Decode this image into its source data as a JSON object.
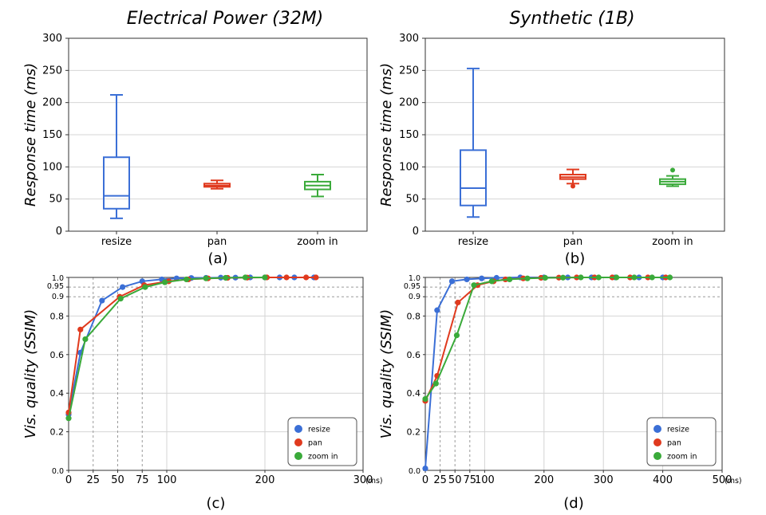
{
  "colors": {
    "resize": "#3b6fd6",
    "pan": "#e03a1e",
    "zoom_in": "#3aaa3a"
  },
  "chart_data": [
    {
      "id": "a",
      "type": "box",
      "title": "Electrical Power (32M)",
      "ylabel": "Response time (ms)",
      "caption": "(a)",
      "ylim": [
        0,
        300
      ],
      "yticks": [
        0,
        50,
        100,
        150,
        200,
        250,
        300
      ],
      "grid": "horizontal",
      "categories": [
        "resize",
        "pan",
        "zoom in"
      ],
      "boxes": [
        {
          "name": "resize",
          "whislo": 20,
          "q1": 35,
          "med": 55,
          "q3": 115,
          "whishi": 212,
          "fliers": []
        },
        {
          "name": "pan",
          "whislo": 66,
          "q1": 69,
          "med": 71,
          "q3": 74,
          "whishi": 79,
          "fliers": []
        },
        {
          "name": "zoom in",
          "whislo": 54,
          "q1": 65,
          "med": 71,
          "q3": 77,
          "whishi": 88,
          "fliers": []
        }
      ]
    },
    {
      "id": "b",
      "type": "box",
      "title": "Synthetic (1B)",
      "ylabel": "Response time (ms)",
      "caption": "(b)",
      "ylim": [
        0,
        300
      ],
      "yticks": [
        0,
        50,
        100,
        150,
        200,
        250,
        300
      ],
      "grid": "horizontal",
      "categories": [
        "resize",
        "pan",
        "zoom in"
      ],
      "boxes": [
        {
          "name": "resize",
          "whislo": 22,
          "q1": 40,
          "med": 67,
          "q3": 126,
          "whishi": 253,
          "fliers": []
        },
        {
          "name": "pan",
          "whislo": 74,
          "q1": 81,
          "med": 84,
          "q3": 88,
          "whishi": 96,
          "fliers": [
            70
          ]
        },
        {
          "name": "zoom in",
          "whislo": 70,
          "q1": 73,
          "med": 77,
          "q3": 81,
          "whishi": 86,
          "fliers": [
            95
          ]
        }
      ]
    },
    {
      "id": "c",
      "type": "line",
      "title": "",
      "ylabel": "Vis. quality (SSIM)",
      "xunit": "(ms)",
      "caption": "(c)",
      "xlim": [
        0,
        300
      ],
      "ylim": [
        0,
        1.0
      ],
      "xticks": [
        0,
        25,
        50,
        75,
        100,
        200,
        300
      ],
      "yticks": [
        0.0,
        0.2,
        0.4,
        0.6,
        0.8,
        0.9,
        0.95,
        1.0
      ],
      "solid_vlines": [
        100,
        200,
        300
      ],
      "dashed_vlines": [
        25,
        50,
        75
      ],
      "dashed_hlines": [
        0.9,
        0.95
      ],
      "legend": "bottom-right",
      "series": [
        {
          "name": "resize",
          "x": [
            0,
            12,
            34,
            55,
            75,
            95,
            110,
            125,
            140,
            155,
            170,
            185,
            200,
            215,
            230,
            250
          ],
          "y": [
            0.29,
            0.61,
            0.88,
            0.95,
            0.98,
            0.99,
            0.995,
            0.997,
            0.998,
            0.999,
            0.999,
            1.0,
            1.0,
            1.0,
            1.0,
            1.0
          ]
        },
        {
          "name": "pan",
          "x": [
            0,
            12,
            52,
            77,
            102,
            122,
            142,
            162,
            182,
            202,
            222,
            242,
            252
          ],
          "y": [
            0.3,
            0.73,
            0.9,
            0.96,
            0.98,
            0.99,
            0.995,
            0.998,
            0.999,
            1.0,
            1.0,
            1.0,
            1.0
          ]
        },
        {
          "name": "zoom in",
          "x": [
            0,
            17,
            53,
            78,
            98,
            120,
            140,
            160,
            180,
            200
          ],
          "y": [
            0.27,
            0.68,
            0.89,
            0.95,
            0.975,
            0.99,
            0.995,
            0.998,
            1.0,
            1.0
          ]
        }
      ]
    },
    {
      "id": "d",
      "type": "line",
      "title": "",
      "ylabel": "Vis. quality (SSIM)",
      "xunit": "(ms)",
      "caption": "(d)",
      "xlim": [
        0,
        500
      ],
      "ylim": [
        0,
        1.0
      ],
      "xticks": [
        0,
        25,
        50,
        75,
        100,
        200,
        300,
        400,
        500
      ],
      "yticks": [
        0.0,
        0.2,
        0.4,
        0.6,
        0.8,
        0.9,
        0.95,
        1.0
      ],
      "solid_vlines": [
        100,
        200,
        300,
        400,
        500
      ],
      "dashed_vlines": [
        25,
        50,
        75
      ],
      "dashed_hlines": [
        0.9,
        0.95
      ],
      "legend": "bottom-right",
      "series": [
        {
          "name": "resize",
          "x": [
            0,
            20,
            45,
            70,
            95,
            120,
            160,
            200,
            240,
            280,
            320,
            360,
            400
          ],
          "y": [
            0.01,
            0.83,
            0.98,
            0.99,
            0.995,
            0.998,
            1.0,
            1.0,
            1.0,
            1.0,
            1.0,
            1.0,
            1.0
          ]
        },
        {
          "name": "pan",
          "x": [
            0,
            20,
            55,
            88,
            115,
            135,
            165,
            195,
            225,
            255,
            285,
            315,
            345,
            375,
            405
          ],
          "y": [
            0.36,
            0.49,
            0.87,
            0.96,
            0.98,
            0.99,
            0.995,
            0.998,
            0.999,
            1.0,
            1.0,
            1.0,
            1.0,
            1.0,
            1.0
          ]
        },
        {
          "name": "zoom in",
          "x": [
            0,
            18,
            53,
            82,
            112,
            142,
            172,
            202,
            232,
            262,
            292,
            322,
            352,
            382,
            412
          ],
          "y": [
            0.37,
            0.45,
            0.7,
            0.96,
            0.98,
            0.99,
            0.995,
            0.998,
            0.999,
            1.0,
            1.0,
            1.0,
            1.0,
            1.0,
            1.0
          ]
        }
      ]
    }
  ]
}
